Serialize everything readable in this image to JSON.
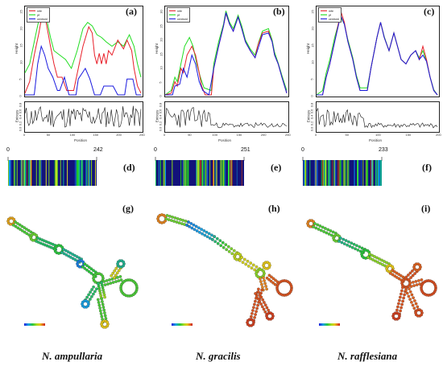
{
  "panels_top": [
    {
      "id": "a",
      "letter": "(a)",
      "legend": [
        "mfe",
        "pf",
        "centroid"
      ],
      "xlabel": "Position",
      "ylabel_top": "Height",
      "ylabel_bottom": "Entropy",
      "xticks": [
        "0",
        "50",
        "100",
        "150",
        "200",
        "250"
      ],
      "yticks_top": [
        "0",
        "5",
        "10",
        "15",
        "20",
        "25"
      ],
      "yticks_bottom": [
        "0.0",
        "0.2",
        "0.4",
        "0.6",
        "0.8"
      ]
    },
    {
      "id": "b",
      "letter": "(b)",
      "legend": [
        "mfe",
        "pf",
        "centroid"
      ],
      "xlabel": "Position",
      "ylabel_top": "Height",
      "ylabel_bottom": "Entropy",
      "xticks": [
        "0",
        "50",
        "100",
        "150",
        "200",
        "250"
      ],
      "yticks_top": [
        "0",
        "5",
        "10",
        "15",
        "20",
        "25",
        "30"
      ],
      "yticks_bottom": [
        "0.0",
        "0.2",
        "0.4",
        "0.6",
        "0.8"
      ]
    },
    {
      "id": "c",
      "letter": "(c)",
      "legend": [
        "mfe",
        "pf",
        "centroid"
      ],
      "xlabel": "Position",
      "ylabel_top": "Height",
      "ylabel_bottom": "Entropy",
      "xticks": [
        "0",
        "50",
        "100",
        "150",
        "200"
      ],
      "yticks_top": [
        "0",
        "5",
        "10",
        "15",
        "20",
        "25"
      ],
      "yticks_bottom": [
        "0.0",
        "0.2",
        "0.4",
        "0.6",
        "0.8"
      ]
    }
  ],
  "bars": [
    {
      "id": "d",
      "letter": "(d)",
      "start": "0",
      "end": "242"
    },
    {
      "id": "e",
      "letter": "(e)",
      "start": "0",
      "end": "251"
    },
    {
      "id": "f",
      "letter": "(f)",
      "start": "0",
      "end": "233"
    }
  ],
  "structures": [
    {
      "id": "g",
      "letter": "(g)"
    },
    {
      "id": "h",
      "letter": "(h)"
    },
    {
      "id": "i",
      "letter": "(i)"
    }
  ],
  "species": [
    "N. ampullaria",
    "N. gracilis",
    "N. rafflesiana"
  ],
  "colors": {
    "mfe": "#e8202a",
    "pf": "#22dd22",
    "centroid": "#1a1adf",
    "entropy": "#111111"
  }
}
